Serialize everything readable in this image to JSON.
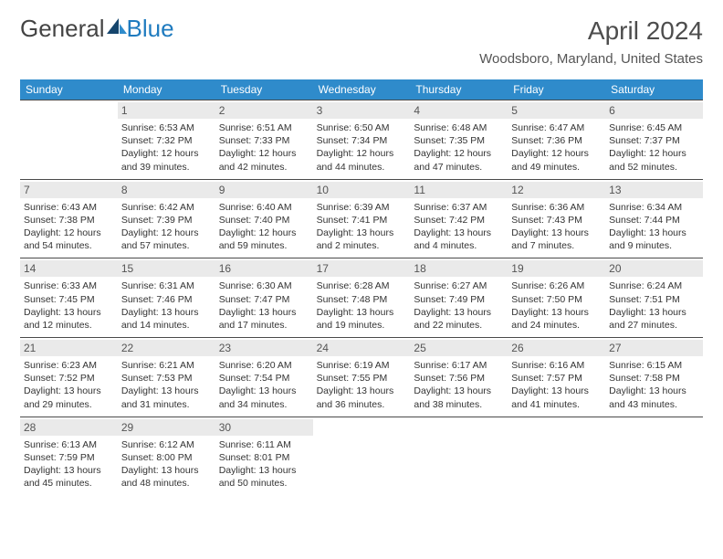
{
  "brand": {
    "part1": "General",
    "part2": "Blue",
    "color_general": "#444444",
    "color_blue": "#1f7bbf",
    "icon_fill": "#15456d"
  },
  "title": "April 2024",
  "location": "Woodsboro, Maryland, United States",
  "header_bg": "#2f8bcb",
  "header_fg": "#ffffff",
  "daynum_bg": "#eaeaea",
  "row_border": "#4a4a4a",
  "text_color": "#333333",
  "weekdays": [
    "Sunday",
    "Monday",
    "Tuesday",
    "Wednesday",
    "Thursday",
    "Friday",
    "Saturday"
  ],
  "first_weekday_offset": 1,
  "days": [
    {
      "n": 1,
      "sunrise": "6:53 AM",
      "sunset": "7:32 PM",
      "day_h": 12,
      "day_m": 39
    },
    {
      "n": 2,
      "sunrise": "6:51 AM",
      "sunset": "7:33 PM",
      "day_h": 12,
      "day_m": 42
    },
    {
      "n": 3,
      "sunrise": "6:50 AM",
      "sunset": "7:34 PM",
      "day_h": 12,
      "day_m": 44
    },
    {
      "n": 4,
      "sunrise": "6:48 AM",
      "sunset": "7:35 PM",
      "day_h": 12,
      "day_m": 47
    },
    {
      "n": 5,
      "sunrise": "6:47 AM",
      "sunset": "7:36 PM",
      "day_h": 12,
      "day_m": 49
    },
    {
      "n": 6,
      "sunrise": "6:45 AM",
      "sunset": "7:37 PM",
      "day_h": 12,
      "day_m": 52
    },
    {
      "n": 7,
      "sunrise": "6:43 AM",
      "sunset": "7:38 PM",
      "day_h": 12,
      "day_m": 54
    },
    {
      "n": 8,
      "sunrise": "6:42 AM",
      "sunset": "7:39 PM",
      "day_h": 12,
      "day_m": 57
    },
    {
      "n": 9,
      "sunrise": "6:40 AM",
      "sunset": "7:40 PM",
      "day_h": 12,
      "day_m": 59
    },
    {
      "n": 10,
      "sunrise": "6:39 AM",
      "sunset": "7:41 PM",
      "day_h": 13,
      "day_m": 2
    },
    {
      "n": 11,
      "sunrise": "6:37 AM",
      "sunset": "7:42 PM",
      "day_h": 13,
      "day_m": 4
    },
    {
      "n": 12,
      "sunrise": "6:36 AM",
      "sunset": "7:43 PM",
      "day_h": 13,
      "day_m": 7
    },
    {
      "n": 13,
      "sunrise": "6:34 AM",
      "sunset": "7:44 PM",
      "day_h": 13,
      "day_m": 9
    },
    {
      "n": 14,
      "sunrise": "6:33 AM",
      "sunset": "7:45 PM",
      "day_h": 13,
      "day_m": 12
    },
    {
      "n": 15,
      "sunrise": "6:31 AM",
      "sunset": "7:46 PM",
      "day_h": 13,
      "day_m": 14
    },
    {
      "n": 16,
      "sunrise": "6:30 AM",
      "sunset": "7:47 PM",
      "day_h": 13,
      "day_m": 17
    },
    {
      "n": 17,
      "sunrise": "6:28 AM",
      "sunset": "7:48 PM",
      "day_h": 13,
      "day_m": 19
    },
    {
      "n": 18,
      "sunrise": "6:27 AM",
      "sunset": "7:49 PM",
      "day_h": 13,
      "day_m": 22
    },
    {
      "n": 19,
      "sunrise": "6:26 AM",
      "sunset": "7:50 PM",
      "day_h": 13,
      "day_m": 24
    },
    {
      "n": 20,
      "sunrise": "6:24 AM",
      "sunset": "7:51 PM",
      "day_h": 13,
      "day_m": 27
    },
    {
      "n": 21,
      "sunrise": "6:23 AM",
      "sunset": "7:52 PM",
      "day_h": 13,
      "day_m": 29
    },
    {
      "n": 22,
      "sunrise": "6:21 AM",
      "sunset": "7:53 PM",
      "day_h": 13,
      "day_m": 31
    },
    {
      "n": 23,
      "sunrise": "6:20 AM",
      "sunset": "7:54 PM",
      "day_h": 13,
      "day_m": 34
    },
    {
      "n": 24,
      "sunrise": "6:19 AM",
      "sunset": "7:55 PM",
      "day_h": 13,
      "day_m": 36
    },
    {
      "n": 25,
      "sunrise": "6:17 AM",
      "sunset": "7:56 PM",
      "day_h": 13,
      "day_m": 38
    },
    {
      "n": 26,
      "sunrise": "6:16 AM",
      "sunset": "7:57 PM",
      "day_h": 13,
      "day_m": 41
    },
    {
      "n": 27,
      "sunrise": "6:15 AM",
      "sunset": "7:58 PM",
      "day_h": 13,
      "day_m": 43
    },
    {
      "n": 28,
      "sunrise": "6:13 AM",
      "sunset": "7:59 PM",
      "day_h": 13,
      "day_m": 45
    },
    {
      "n": 29,
      "sunrise": "6:12 AM",
      "sunset": "8:00 PM",
      "day_h": 13,
      "day_m": 48
    },
    {
      "n": 30,
      "sunrise": "6:11 AM",
      "sunset": "8:01 PM",
      "day_h": 13,
      "day_m": 50
    }
  ]
}
